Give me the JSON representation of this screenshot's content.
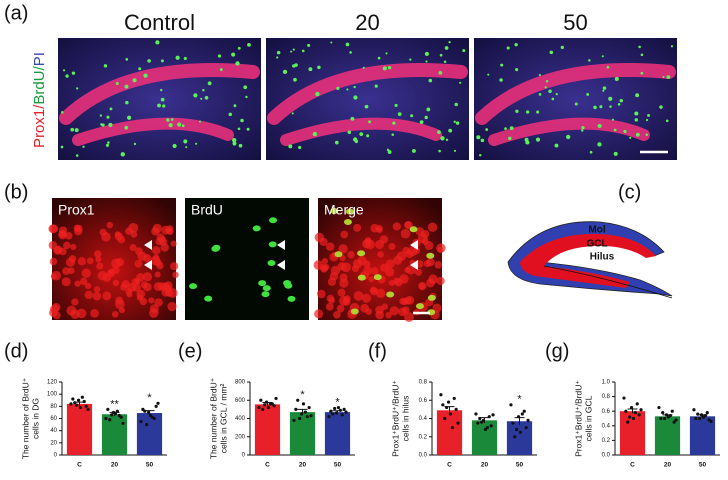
{
  "panel_labels": [
    "(a)",
    "(b)",
    "(c)",
    "(d)",
    "(e)",
    "(f)",
    "(g)"
  ],
  "a": {
    "titles": [
      "Control",
      "20",
      "50"
    ],
    "side_label": [
      "Prox1/",
      "BrdU/",
      "PI"
    ]
  },
  "b": {
    "titles": [
      "Prox1",
      "BrdU",
      "Merge"
    ]
  },
  "c": {
    "labels": [
      "Mol",
      "GCL",
      "Hilus"
    ]
  },
  "chart_data": [
    {
      "type": "bar",
      "ylabel": [
        "The number of BrdU⁺",
        "cells in DG"
      ],
      "categories": [
        "C",
        "20",
        "50"
      ],
      "values": [
        84,
        67,
        69
      ],
      "errors": [
        3,
        3,
        4
      ],
      "colors": [
        "#e8202a",
        "#1a8a3a",
        "#2b3a9a"
      ],
      "significance": [
        null,
        "**",
        "*"
      ],
      "points": [
        [
          84,
          88,
          90,
          92,
          80,
          78,
          86,
          75,
          95,
          82
        ],
        [
          60,
          65,
          70,
          75,
          62,
          68,
          58,
          52,
          72,
          66
        ],
        [
          55,
          60,
          70,
          75,
          80,
          65,
          72,
          85,
          62,
          50
        ]
      ],
      "ylim": [
        0,
        120
      ],
      "yticks": [
        0,
        20,
        40,
        60,
        80,
        100,
        120
      ]
    },
    {
      "type": "bar",
      "ylabel": [
        "The number of BrdU⁺",
        "cells in GCL / mm²"
      ],
      "categories": [
        "C",
        "20",
        "50"
      ],
      "values": [
        555,
        470,
        470
      ],
      "errors": [
        20,
        30,
        15
      ],
      "colors": [
        "#e8202a",
        "#1a8a3a",
        "#2b3a9a"
      ],
      "significance": [
        null,
        "*",
        "*"
      ],
      "points": [
        [
          520,
          560,
          580,
          600,
          540,
          520,
          500,
          620,
          560,
          550
        ],
        [
          380,
          420,
          450,
          500,
          520,
          560,
          600,
          430,
          470,
          400
        ],
        [
          420,
          440,
          460,
          480,
          500,
          520,
          450,
          470,
          490,
          510
        ]
      ],
      "ylim": [
        0,
        800
      ],
      "yticks": [
        0,
        200,
        400,
        600,
        800
      ]
    },
    {
      "type": "bar",
      "ylabel": [
        "Prox1⁺BrdU⁺/BrdU⁺",
        "cells in hilus"
      ],
      "categories": [
        "C",
        "20",
        "50"
      ],
      "values": [
        0.49,
        0.38,
        0.37
      ],
      "errors": [
        0.04,
        0.03,
        0.04
      ],
      "colors": [
        "#e8202a",
        "#1a8a3a",
        "#2b3a9a"
      ],
      "significance": [
        null,
        null,
        "*"
      ],
      "points": [
        [
          0.66,
          0.62,
          0.58,
          0.55,
          0.5,
          0.45,
          0.4,
          0.35,
          0.3,
          0.52
        ],
        [
          0.45,
          0.42,
          0.38,
          0.35,
          0.32,
          0.28,
          0.4,
          0.44,
          0.3,
          0.36
        ],
        [
          0.55,
          0.48,
          0.42,
          0.35,
          0.3,
          0.25,
          0.2,
          0.38,
          0.45,
          0.28
        ]
      ],
      "ylim": [
        0,
        0.8
      ],
      "yticks": [
        {
          "value": 0,
          "label": "0.0"
        },
        0.2,
        0.4,
        0.6,
        0.8
      ]
    },
    {
      "type": "bar",
      "ylabel": [
        "Prox1⁺BrdU⁺/BrdU⁺",
        "cells in GCL"
      ],
      "categories": [
        "C",
        "20",
        "50"
      ],
      "values": [
        0.6,
        0.53,
        0.53
      ],
      "errors": [
        0.03,
        0.02,
        0.02
      ],
      "colors": [
        "#e8202a",
        "#1a8a3a",
        "#2b3a9a"
      ],
      "significance": [
        null,
        null,
        null
      ],
      "points": [
        [
          0.78,
          0.7,
          0.65,
          0.6,
          0.55,
          0.5,
          0.45,
          0.62,
          0.58,
          0.52
        ],
        [
          0.65,
          0.6,
          0.55,
          0.5,
          0.45,
          0.52,
          0.58,
          0.48,
          0.54,
          0.5
        ],
        [
          0.62,
          0.58,
          0.55,
          0.5,
          0.48,
          0.52,
          0.56,
          0.46,
          0.54,
          0.5
        ]
      ],
      "ylim": [
        0,
        1
      ],
      "yticks": [
        {
          "value": 0,
          "label": "0.0"
        },
        0.2,
        0.4,
        0.6,
        0.8,
        {
          "value": 1,
          "label": "1.0"
        }
      ]
    }
  ]
}
